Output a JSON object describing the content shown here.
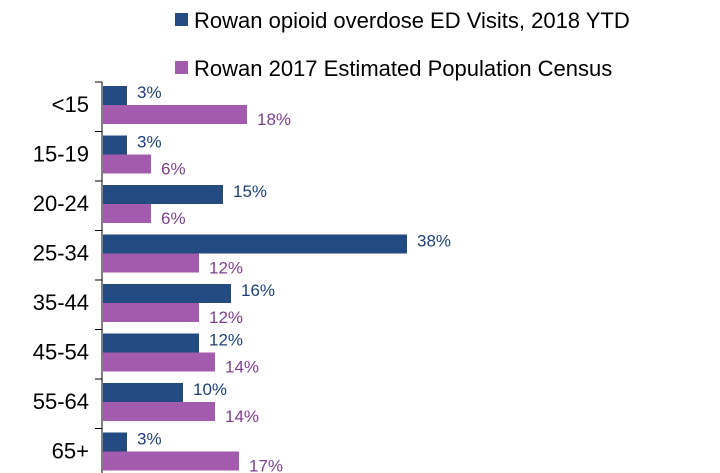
{
  "chart_data": {
    "type": "bar",
    "orientation": "horizontal",
    "categories": [
      "<15",
      "15-19",
      "20-24",
      "25-34",
      "35-44",
      "45-54",
      "55-64",
      "65+"
    ],
    "series": [
      {
        "name": "Rowan opioid overdose ED Visits, 2018 YTD",
        "values": [
          3,
          3,
          15,
          38,
          16,
          12,
          10,
          3
        ],
        "labels": [
          "3%",
          "3%",
          "15%",
          "38%",
          "16%",
          "12%",
          "10%",
          "3%"
        ],
        "color": "#244A82"
      },
      {
        "name": "Rowan 2017 Estimated Population Census",
        "values": [
          18,
          6,
          6,
          12,
          12,
          14,
          14,
          17
        ],
        "labels": [
          "18%",
          "6%",
          "6%",
          "12%",
          "12%",
          "14%",
          "14%",
          "17%"
        ],
        "color": "#A35BAE"
      }
    ],
    "value_unit": "%",
    "legend_position": "top",
    "grid": false
  },
  "colors": {
    "series1_label": "#1F3F75",
    "series2_label": "#7E3F8C",
    "axis": "#000000"
  }
}
